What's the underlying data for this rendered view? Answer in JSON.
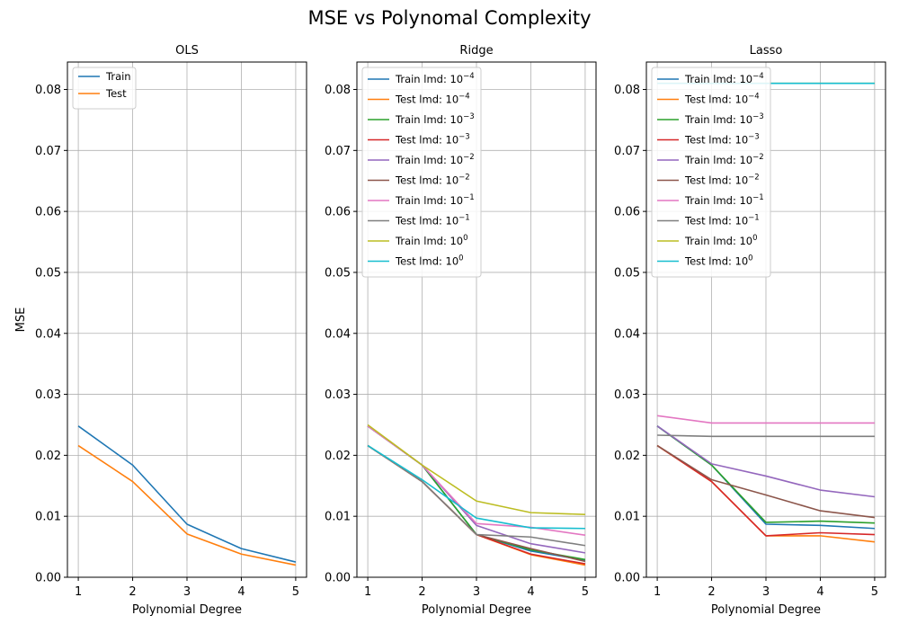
{
  "figure": {
    "title": "MSE vs Polynomal Complexity"
  },
  "colors": {
    "tab10": [
      "#1f77b4",
      "#ff7f0e",
      "#2ca02c",
      "#d62728",
      "#9467bd",
      "#8c564b",
      "#e377c2",
      "#7f7f7f",
      "#bcbd22",
      "#17becf"
    ]
  },
  "chart_data": [
    {
      "type": "line",
      "title": "OLS",
      "xlabel": "Polynomial Degree",
      "ylabel": "MSE",
      "xlim": [
        0.8,
        5.2
      ],
      "ylim": [
        0,
        0.0845
      ],
      "x": [
        1,
        2,
        3,
        4,
        5
      ],
      "xticks": [
        "1",
        "2",
        "3",
        "4",
        "5"
      ],
      "yticks": [
        "0.00",
        "0.01",
        "0.02",
        "0.03",
        "0.04",
        "0.05",
        "0.06",
        "0.07",
        "0.08"
      ],
      "grid": true,
      "legend": "upper-left",
      "series": [
        {
          "name": "Train",
          "values": [
            0.0248,
            0.0184,
            0.0087,
            0.0047,
            0.0025
          ]
        },
        {
          "name": "Test",
          "values": [
            0.0216,
            0.0157,
            0.0071,
            0.0038,
            0.002
          ]
        }
      ]
    },
    {
      "type": "line",
      "title": "Ridge",
      "xlabel": "Polynomial Degree",
      "ylabel": "",
      "xlim": [
        0.8,
        5.2
      ],
      "ylim": [
        0,
        0.0845
      ],
      "x": [
        1,
        2,
        3,
        4,
        5
      ],
      "xticks": [
        "1",
        "2",
        "3",
        "4",
        "5"
      ],
      "yticks": [
        "0.00",
        "0.01",
        "0.02",
        "0.03",
        "0.04",
        "0.05",
        "0.06",
        "0.07",
        "0.08"
      ],
      "grid": true,
      "legend": "upper-left",
      "series": [
        {
          "name": "Train lmd: 10",
          "exp": "−4",
          "values": [
            0.0248,
            0.0184,
            0.007,
            0.0043,
            0.0028
          ]
        },
        {
          "name": "Test lmd: 10",
          "exp": "−4",
          "values": [
            0.0216,
            0.0157,
            0.007,
            0.0037,
            0.002
          ]
        },
        {
          "name": "Train lmd: 10",
          "exp": "−3",
          "values": [
            0.0248,
            0.0184,
            0.007,
            0.0045,
            0.0029
          ]
        },
        {
          "name": "Test lmd: 10",
          "exp": "−3",
          "values": [
            0.0216,
            0.0157,
            0.007,
            0.0038,
            0.0022
          ]
        },
        {
          "name": "Train lmd: 10",
          "exp": "−2",
          "values": [
            0.0248,
            0.0184,
            0.0085,
            0.0055,
            0.004
          ]
        },
        {
          "name": "Test lmd: 10",
          "exp": "−2",
          "values": [
            0.0216,
            0.0157,
            0.007,
            0.0047,
            0.0026
          ]
        },
        {
          "name": "Train lmd: 10",
          "exp": "−1",
          "values": [
            0.0248,
            0.0184,
            0.0088,
            0.0082,
            0.0069
          ]
        },
        {
          "name": "Test lmd: 10",
          "exp": "−1",
          "values": [
            0.0216,
            0.0157,
            0.007,
            0.0066,
            0.0052
          ]
        },
        {
          "name": "Train lmd: 10",
          "exp": "0",
          "values": [
            0.025,
            0.0184,
            0.0125,
            0.0106,
            0.0103
          ]
        },
        {
          "name": "Test lmd: 10",
          "exp": "0",
          "values": [
            0.0216,
            0.016,
            0.0097,
            0.0081,
            0.008
          ]
        }
      ]
    },
    {
      "type": "line",
      "title": "Lasso",
      "xlabel": "Polynomial Degree",
      "ylabel": "",
      "xlim": [
        0.8,
        5.2
      ],
      "ylim": [
        0,
        0.0845
      ],
      "x": [
        1,
        2,
        3,
        4,
        5
      ],
      "xticks": [
        "1",
        "2",
        "3",
        "4",
        "5"
      ],
      "yticks": [
        "0.00",
        "0.01",
        "0.02",
        "0.03",
        "0.04",
        "0.05",
        "0.06",
        "0.07",
        "0.08"
      ],
      "grid": true,
      "legend": "upper-left",
      "series": [
        {
          "name": "Train lmd: 10",
          "exp": "−4",
          "values": [
            0.0248,
            0.0184,
            0.0087,
            0.0085,
            0.008
          ]
        },
        {
          "name": "Test lmd: 10",
          "exp": "−4",
          "values": [
            0.0216,
            0.0157,
            0.0068,
            0.0068,
            0.0058
          ]
        },
        {
          "name": "Train lmd: 10",
          "exp": "−3",
          "values": [
            0.0248,
            0.0184,
            0.009,
            0.0092,
            0.0089
          ]
        },
        {
          "name": "Test lmd: 10",
          "exp": "−3",
          "values": [
            0.0216,
            0.0157,
            0.0068,
            0.0073,
            0.007
          ]
        },
        {
          "name": "Train lmd: 10",
          "exp": "−2",
          "values": [
            0.0248,
            0.0186,
            0.0166,
            0.0143,
            0.0132
          ]
        },
        {
          "name": "Test lmd: 10",
          "exp": "−2",
          "values": [
            0.0216,
            0.016,
            0.0135,
            0.0109,
            0.0098
          ]
        },
        {
          "name": "Train lmd: 10",
          "exp": "−1",
          "values": [
            0.0265,
            0.0253,
            0.0253,
            0.0253,
            0.0253
          ]
        },
        {
          "name": "Test lmd: 10",
          "exp": "−1",
          "values": [
            0.0233,
            0.0231,
            0.0231,
            0.0231,
            0.0231
          ]
        },
        {
          "name": "Train lmd: 10",
          "exp": "0",
          "values": [
            0.081,
            0.081,
            0.081,
            0.081,
            0.081
          ]
        },
        {
          "name": "Test lmd: 10",
          "exp": "0",
          "values": [
            0.081,
            0.081,
            0.081,
            0.081,
            0.081
          ]
        }
      ]
    }
  ]
}
